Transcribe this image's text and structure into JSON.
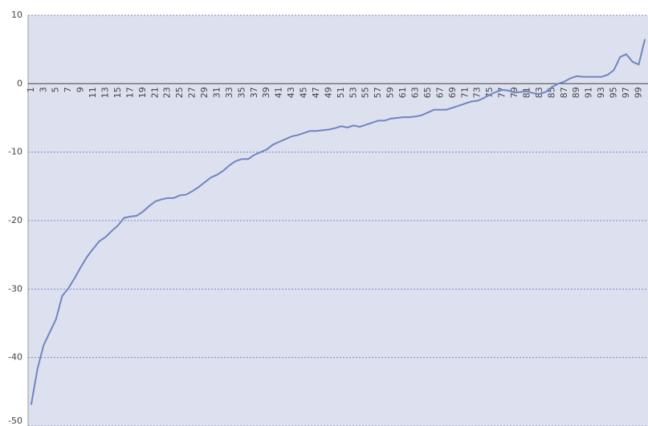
{
  "chart_data": {
    "type": "line",
    "categories": [
      1,
      null,
      3,
      null,
      5,
      null,
      7,
      null,
      9,
      null,
      11,
      null,
      13,
      null,
      15,
      null,
      17,
      null,
      19,
      null,
      21,
      null,
      23,
      null,
      25,
      null,
      27,
      null,
      29,
      null,
      31,
      null,
      33,
      null,
      35,
      null,
      37,
      null,
      39,
      null,
      41,
      null,
      43,
      null,
      45,
      null,
      47,
      null,
      49,
      null,
      51,
      null,
      53,
      null,
      55,
      null,
      57,
      null,
      59,
      null,
      61,
      null,
      63,
      null,
      65,
      null,
      67,
      null,
      69,
      null,
      71,
      null,
      73,
      null,
      75,
      null,
      77,
      null,
      79,
      null,
      81,
      null,
      83,
      null,
      85,
      null,
      87,
      null,
      89,
      null,
      91,
      null,
      93,
      null,
      95,
      null,
      97,
      null,
      99,
      null
    ],
    "values": [
      -46.9,
      -41.7,
      -38.2,
      -36.3,
      -34.4,
      -31.0,
      -29.9,
      -28.4,
      -26.8,
      -25.3,
      -24.1,
      -23.0,
      -22.4,
      -21.5,
      -20.7,
      -19.6,
      -19.4,
      -19.3,
      -18.7,
      -17.9,
      -17.2,
      -16.9,
      -16.7,
      -16.7,
      -16.3,
      -16.2,
      -15.7,
      -15.1,
      -14.4,
      -13.7,
      -13.3,
      -12.7,
      -11.9,
      -11.3,
      -11.0,
      -11.0,
      -10.4,
      -10.0,
      -9.6,
      -8.9,
      -8.5,
      -8.1,
      -7.7,
      -7.5,
      -7.2,
      -6.9,
      -6.9,
      -6.8,
      -6.7,
      -6.5,
      -6.2,
      -6.4,
      -6.1,
      -6.3,
      -6.0,
      -5.7,
      -5.4,
      -5.4,
      -5.1,
      -5.0,
      -4.9,
      -4.9,
      -4.8,
      -4.6,
      -4.2,
      -3.8,
      -3.8,
      -3.8,
      -3.5,
      -3.2,
      -2.9,
      -2.6,
      -2.5,
      -2.1,
      -1.6,
      -1.2,
      -0.9,
      -1.0,
      -1.3,
      -1.2,
      -1.1,
      -1.4,
      -1.5,
      -1.2,
      -0.5,
      0.0,
      0.3,
      0.8,
      1.1,
      1.0,
      1.0,
      1.0,
      1.0,
      1.3,
      2.0,
      3.9,
      4.3,
      3.2,
      2.8,
      6.5
    ],
    "color": "#7085c0",
    "ylim": [
      -50,
      10
    ],
    "yticks": [
      -50,
      -40,
      -30,
      -20,
      -10,
      0,
      10
    ],
    "grid": true
  }
}
